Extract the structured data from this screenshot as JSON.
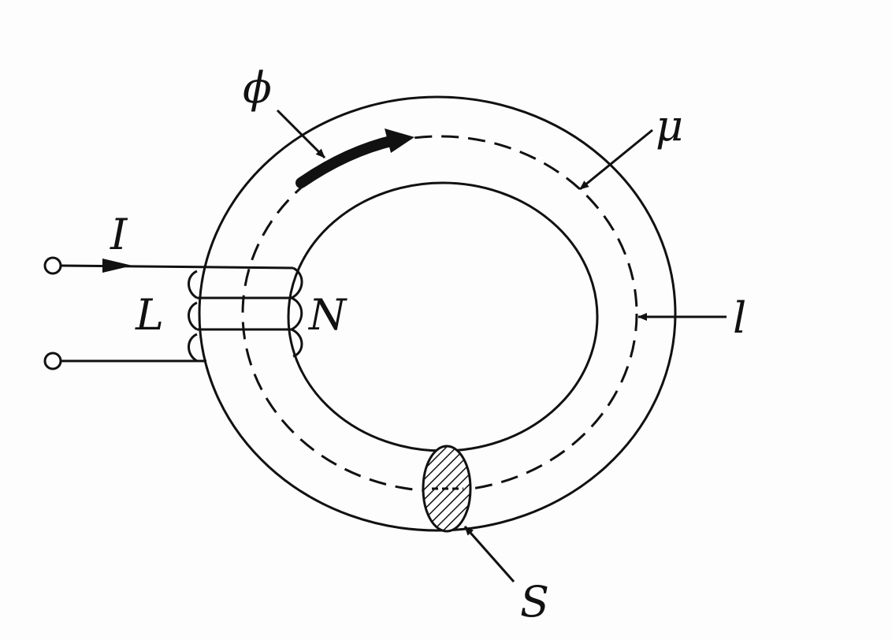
{
  "labels": {
    "flux": "ϕ",
    "permeability": "μ",
    "current": "I",
    "inductance": "L",
    "turns": "N",
    "path_length": "l",
    "cross_section": "S"
  },
  "colors": {
    "ink": "#111111",
    "background": "#fdfdfd"
  }
}
